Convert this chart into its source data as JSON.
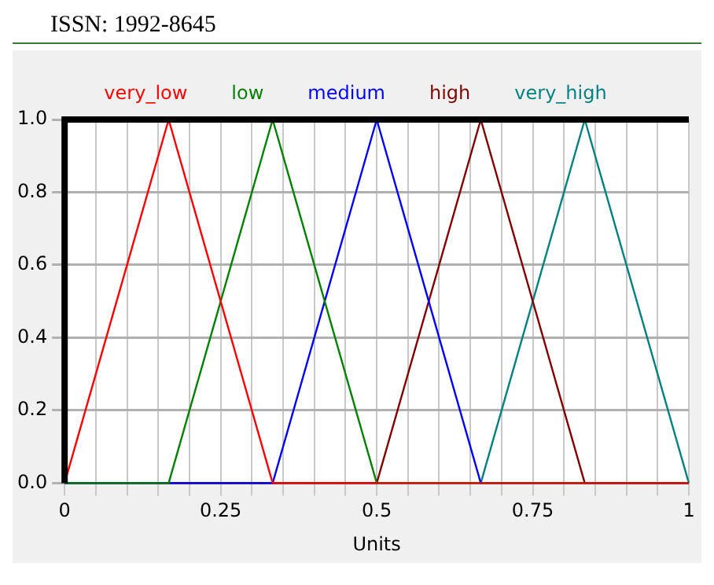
{
  "chart_data": {
    "type": "line",
    "xlabel": "Units",
    "annotations": [
      "ISSN: 1992-8645"
    ],
    "xlim": [
      0,
      1
    ],
    "ylim": [
      0,
      1
    ],
    "xticks": [
      0,
      {
        "value": 0.05,
        "label": null
      },
      {
        "value": 0.1,
        "label": null
      },
      {
        "value": 0.15,
        "label": null
      },
      {
        "value": 0.2,
        "label": null
      },
      0.25,
      {
        "value": 0.3,
        "label": null
      },
      {
        "value": 0.35,
        "label": null
      },
      {
        "value": 0.4,
        "label": null
      },
      {
        "value": 0.45,
        "label": null
      },
      0.5,
      {
        "value": 0.55,
        "label": null
      },
      {
        "value": 0.6,
        "label": null
      },
      {
        "value": 0.65,
        "label": null
      },
      {
        "value": 0.7,
        "label": null
      },
      0.75,
      {
        "value": 0.8,
        "label": null
      },
      {
        "value": 0.85,
        "label": null
      },
      {
        "value": 0.9,
        "label": null
      },
      {
        "value": 0.95,
        "label": null
      },
      1
    ],
    "yticks": [
      {
        "value": 0,
        "label": "0.0"
      },
      0.2,
      0.4,
      0.6,
      0.8,
      {
        "value": 1,
        "label": "1.0"
      }
    ],
    "grid": true,
    "legend": "top",
    "marker": "none",
    "line_style": "solid",
    "series": [
      {
        "name": "very_low",
        "color": "#ff0000",
        "x": [
          0,
          0.1667,
          0.3333,
          1
        ],
        "values": [
          0,
          1,
          0,
          0
        ]
      },
      {
        "name": "low",
        "color": "#008000",
        "x": [
          0,
          0.1667,
          0.3333,
          0.5,
          1
        ],
        "values": [
          0,
          0,
          1,
          0,
          0
        ]
      },
      {
        "name": "medium",
        "color": "#0000ff",
        "x": [
          0,
          0.3333,
          0.5,
          0.6667,
          1
        ],
        "values": [
          0,
          0,
          1,
          0,
          0
        ]
      },
      {
        "name": "high",
        "color": "#800000",
        "x": [
          0,
          0.5,
          0.6667,
          0.8333,
          1
        ],
        "values": [
          0,
          0,
          1,
          0,
          0
        ]
      },
      {
        "name": "very_high",
        "color": "#008080",
        "x": [
          0,
          0.6667,
          0.8333,
          1
        ],
        "values": [
          0,
          0,
          1,
          0
        ]
      }
    ]
  }
}
